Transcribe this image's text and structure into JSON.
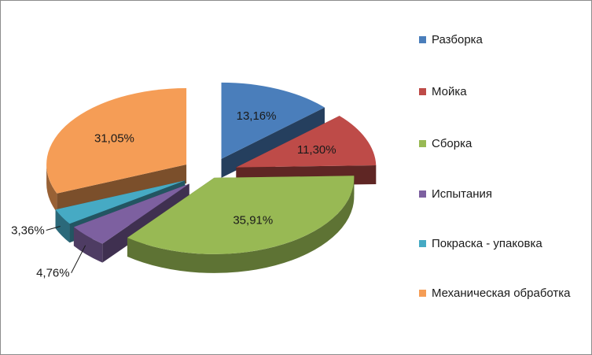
{
  "chart_data": {
    "type": "pie",
    "style": "3d-exploded",
    "legend_position": "right",
    "slices": [
      {
        "name": "Разборка",
        "value": 13.16,
        "label": "13,16%",
        "color": "#4a7ebb"
      },
      {
        "name": "Мойка",
        "value": 11.3,
        "label": "11,30%",
        "color": "#be4b48"
      },
      {
        "name": "Сборка",
        "value": 35.91,
        "label": "35,91%",
        "color": "#98b954"
      },
      {
        "name": "Испытания",
        "value": 4.76,
        "label": "4,76%",
        "color": "#7d60a0"
      },
      {
        "name": "Покраска - упаковка",
        "value": 3.36,
        "label": "3,36%",
        "color": "#46aac4"
      },
      {
        "name": "Механическая обработка",
        "value": 31.05,
        "label": "31,05%",
        "color": "#f59d56"
      }
    ]
  }
}
